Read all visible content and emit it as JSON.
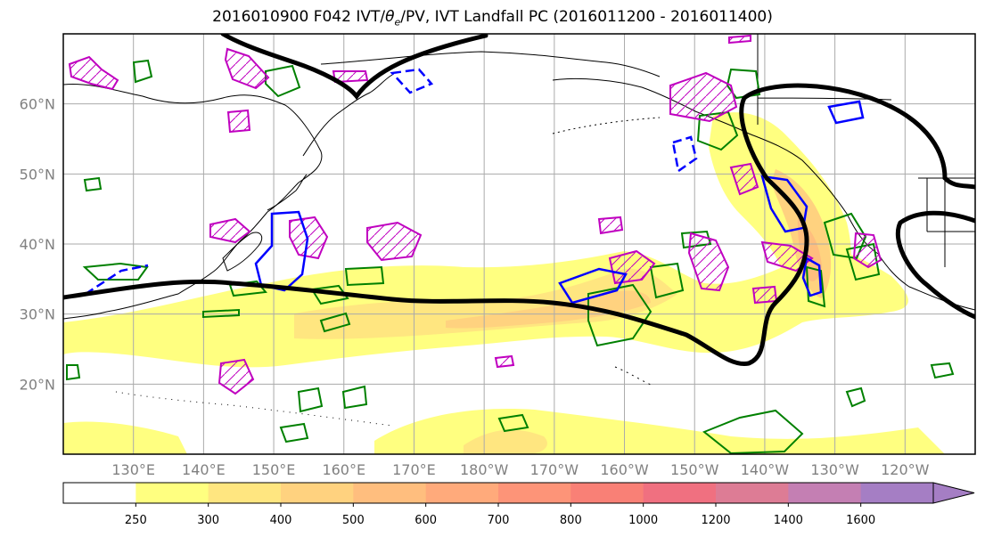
{
  "title": "2016010900 F042 IVT/θe/PV, IVT Landfall PC (2016011200 - 2016011400)",
  "title_parts": {
    "before": "2016010900 F042 IVT/",
    "theta": "θ",
    "theta_sub": "e",
    "after": "/PV, IVT Landfall PC (2016011200 - 2016011400)"
  },
  "map": {
    "projection": "PlateCarree",
    "lon_range": [
      120,
      250
    ],
    "lat_range": [
      10,
      70
    ],
    "grid": true
  },
  "lat_labels": [
    {
      "lat": 60,
      "label": "60°N"
    },
    {
      "lat": 50,
      "label": "50°N"
    },
    {
      "lat": 40,
      "label": "40°N"
    },
    {
      "lat": 30,
      "label": "30°N"
    },
    {
      "lat": 20,
      "label": "20°N"
    }
  ],
  "lon_labels": [
    {
      "lon": 130,
      "label": "130°E"
    },
    {
      "lon": 140,
      "label": "140°E"
    },
    {
      "lon": 150,
      "label": "150°E"
    },
    {
      "lon": 160,
      "label": "160°E"
    },
    {
      "lon": 170,
      "label": "170°E"
    },
    {
      "lon": 180,
      "label": "180°W"
    },
    {
      "lon": 190,
      "label": "170°W"
    },
    {
      "lon": 200,
      "label": "160°W"
    },
    {
      "lon": 210,
      "label": "150°W"
    },
    {
      "lon": 220,
      "label": "140°W"
    },
    {
      "lon": 230,
      "label": "130°W"
    },
    {
      "lon": 240,
      "label": "120°W"
    }
  ],
  "colorbar": {
    "levels": [
      "250",
      "300",
      "400",
      "500",
      "600",
      "700",
      "800",
      "1000",
      "1200",
      "1400",
      "1600"
    ],
    "colors": [
      "#ffffff",
      "#ffff80",
      "#ffe680",
      "#ffd27f",
      "#ffbe7e",
      "#ffaa7b",
      "#fd9478",
      "#f98076",
      "#f07080",
      "#dd7c95",
      "#c47fb3",
      "#a57ec4"
    ],
    "extend": "max"
  },
  "colors": {
    "ivt_contour_landfall": "#000000",
    "theta_e": "#008000",
    "pv_positive": "#c000c0",
    "pv_negative": "#0000ff",
    "gridline": "#aaaaaa",
    "coastline": "#000000"
  }
}
